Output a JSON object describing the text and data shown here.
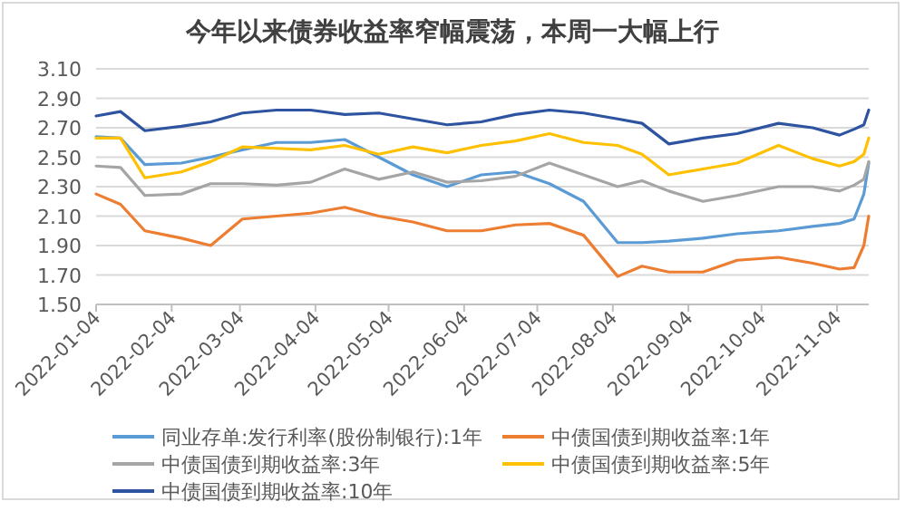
{
  "chart_data": {
    "type": "line",
    "title": "今年以来债券收益率窄幅震荡，本周一大幅上行",
    "x": [
      "2022-01-04",
      "2022-01-14",
      "2022-01-24",
      "2022-02-08",
      "2022-02-20",
      "2022-03-05",
      "2022-03-19",
      "2022-04-02",
      "2022-04-16",
      "2022-04-30",
      "2022-05-14",
      "2022-05-28",
      "2022-06-11",
      "2022-06-25",
      "2022-07-09",
      "2022-07-23",
      "2022-08-06",
      "2022-08-16",
      "2022-08-27",
      "2022-09-10",
      "2022-09-24",
      "2022-10-11",
      "2022-10-25",
      "2022-11-05",
      "2022-11-11",
      "2022-11-15",
      "2022-11-17"
    ],
    "series": [
      {
        "name": "同业存单:发行利率(股份制银行):1年",
        "color": "#5b9bd5",
        "values": [
          2.64,
          2.63,
          2.45,
          2.46,
          2.5,
          2.55,
          2.6,
          2.6,
          2.62,
          2.5,
          2.38,
          2.3,
          2.38,
          2.4,
          2.32,
          2.2,
          1.92,
          1.92,
          1.93,
          1.95,
          1.98,
          2.0,
          2.03,
          2.05,
          2.08,
          2.25,
          2.46
        ]
      },
      {
        "name": "中债国债到期收益率:1年",
        "color": "#ed7d31",
        "values": [
          2.25,
          2.18,
          2.0,
          1.95,
          1.9,
          2.08,
          2.1,
          2.12,
          2.16,
          2.1,
          2.06,
          2.0,
          2.0,
          2.04,
          2.05,
          1.97,
          1.69,
          1.76,
          1.72,
          1.72,
          1.8,
          1.82,
          1.78,
          1.74,
          1.75,
          1.9,
          2.1
        ]
      },
      {
        "name": "中债国债到期收益率:3年",
        "color": "#a5a5a5",
        "values": [
          2.44,
          2.43,
          2.24,
          2.25,
          2.32,
          2.32,
          2.31,
          2.33,
          2.42,
          2.35,
          2.4,
          2.33,
          2.34,
          2.37,
          2.46,
          2.38,
          2.3,
          2.34,
          2.27,
          2.2,
          2.24,
          2.3,
          2.3,
          2.27,
          2.31,
          2.35,
          2.47
        ]
      },
      {
        "name": "中债国债到期收益率:5年",
        "color": "#ffc000",
        "values": [
          2.63,
          2.63,
          2.36,
          2.4,
          2.47,
          2.57,
          2.56,
          2.55,
          2.58,
          2.52,
          2.57,
          2.53,
          2.58,
          2.61,
          2.66,
          2.6,
          2.58,
          2.52,
          2.38,
          2.42,
          2.46,
          2.58,
          2.49,
          2.44,
          2.47,
          2.52,
          2.63
        ]
      },
      {
        "name": "中债国债到期收益率:10年",
        "color": "#2e54a1",
        "values": [
          2.78,
          2.81,
          2.68,
          2.71,
          2.74,
          2.8,
          2.82,
          2.82,
          2.79,
          2.8,
          2.76,
          2.72,
          2.74,
          2.79,
          2.82,
          2.8,
          2.76,
          2.73,
          2.59,
          2.63,
          2.66,
          2.73,
          2.7,
          2.65,
          2.69,
          2.72,
          2.82
        ]
      }
    ],
    "xlim": [
      "2022-01-04",
      "2022-11-17"
    ],
    "xticks": [
      "2022-01-04",
      "2022-02-04",
      "2022-03-04",
      "2022-04-04",
      "2022-05-04",
      "2022-06-04",
      "2022-07-04",
      "2022-08-04",
      "2022-09-04",
      "2022-10-04",
      "2022-11-04"
    ],
    "ylim": [
      1.5,
      3.1
    ],
    "yticks": [
      {
        "value": 1.5,
        "label": "1.50"
      },
      {
        "value": 1.7,
        "label": "1.70"
      },
      {
        "value": 1.9,
        "label": "1.90"
      },
      {
        "value": 2.1,
        "label": "2.10"
      },
      {
        "value": 2.3,
        "label": "2.30"
      },
      {
        "value": 2.5,
        "label": "2.50"
      },
      {
        "value": 2.7,
        "label": "2.70"
      },
      {
        "value": 2.9,
        "label": "2.90"
      },
      {
        "value": 3.1,
        "label": "3.10"
      }
    ],
    "grid": "y",
    "legend": "bottom",
    "line_style": "solid",
    "marker": "none"
  }
}
